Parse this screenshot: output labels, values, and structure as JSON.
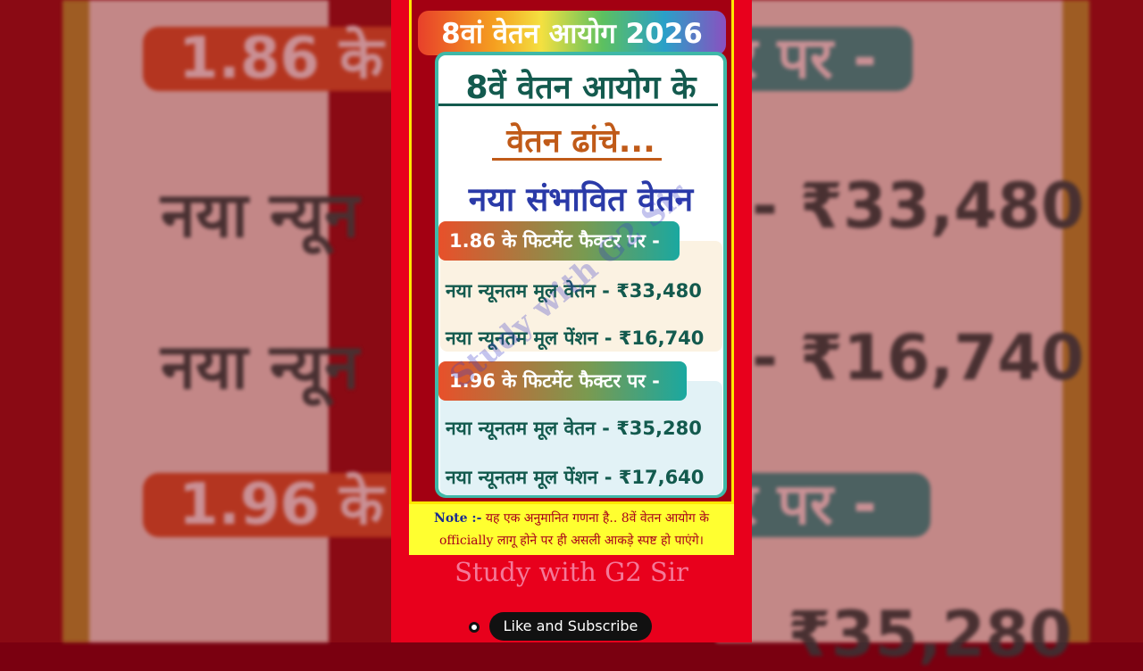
{
  "title_banner": "8वां वेतन आयोग 2026",
  "card": {
    "heading_line1": "8वें वेतन आयोग के",
    "heading_line2": "वेतन ढांचे...",
    "subheading": "नया संभावित वेतन",
    "sections": [
      {
        "label": "1.86 के फिटमेंट फैक्टर पर -",
        "rows": [
          "नया न्यूनतम मूल वेतन - ₹33,480",
          "नया न्यूनतम मूल पेंशन - ₹16,740"
        ]
      },
      {
        "label": "1.96 के फिटमेंट फैक्टर पर -",
        "rows": [
          "नया न्यूनतम मूल वेतन - ₹35,280",
          "नया न्यूनतम मूल पेंशन - ₹17,640"
        ]
      }
    ]
  },
  "watermark": "Study with G2 Sir",
  "note": {
    "prefix": "Note :-",
    "text": " यह एक अनुमानित गणना है.. 8वें वेतन आयोग के officially लागू होने पर ही असली आकड़े स्पष्ट हो पाएंगे।"
  },
  "brand": "Study with G2 Sir",
  "subscribe_label": "Like and Subscribe",
  "background_blur": {
    "left": [
      "1.86 के",
      "नया न्यून",
      "नया न्यून",
      "1.96 के"
    ],
    "right": [
      "र पर -",
      "- ₹33,480",
      "- ₹16,740",
      "र पर -",
      "₹35,280"
    ]
  },
  "colors": {
    "background_red": "#e8001c",
    "frame_yellow": "#ffe800",
    "heading_teal": "#135a4e",
    "heading_orange": "#c05a18",
    "heading_blue": "#2a3aa8",
    "brand_pink": "#f47898"
  }
}
